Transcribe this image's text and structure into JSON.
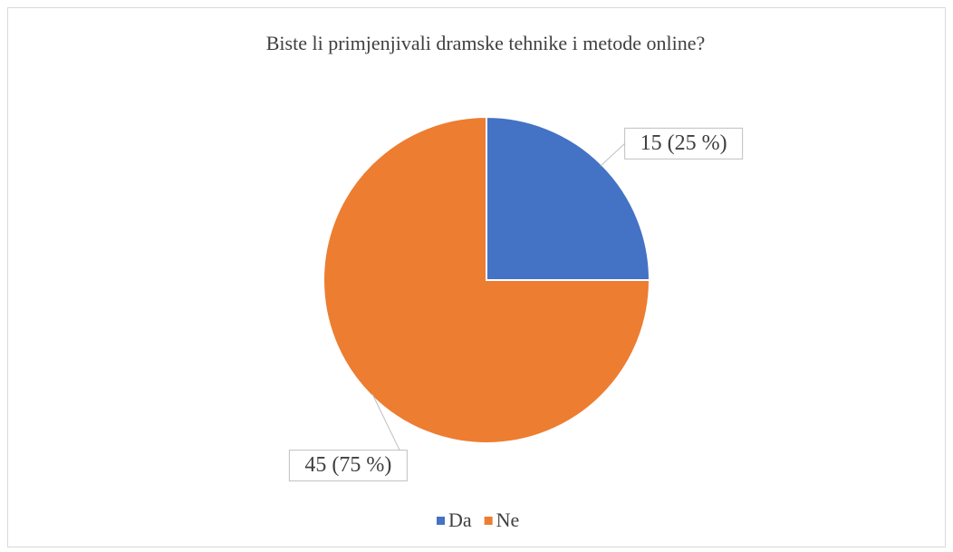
{
  "chart_data": {
    "type": "pie",
    "title": "Biste li primjenjivali dramske tehnike i metode online?",
    "categories": [
      "Da",
      "Ne"
    ],
    "values": [
      15,
      45
    ],
    "value_labels": [
      "15 (25 %)",
      "45 (75 %)"
    ],
    "colors": [
      "#4472c4",
      "#ed7d31"
    ],
    "legend": "bottom"
  }
}
